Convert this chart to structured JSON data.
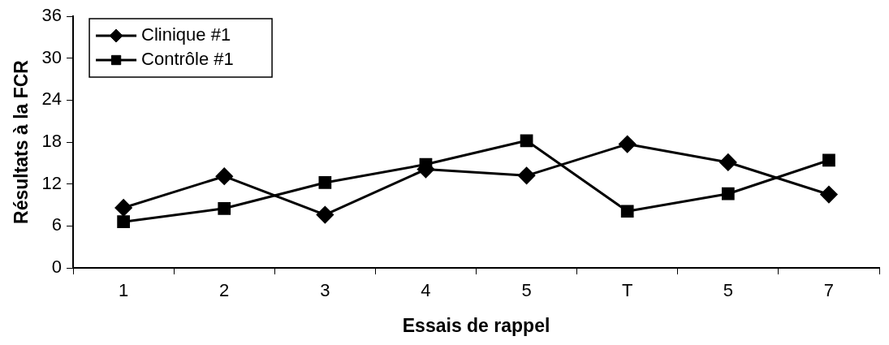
{
  "chart_data": {
    "type": "line",
    "xlabel": "Essais de rappel",
    "ylabel": "Résultats à la FCR",
    "categories": [
      "1",
      "2",
      "3",
      "4",
      "5",
      "T",
      "5",
      "7"
    ],
    "series": [
      {
        "name": "Clinique #1",
        "color": "#000000",
        "marker": "diamond",
        "values": [
          8.6,
          13.1,
          7.6,
          14.1,
          13.2,
          17.7,
          15.1,
          10.5
        ]
      },
      {
        "name": "Contrôle #1",
        "color": "#000000",
        "marker": "square",
        "values": [
          6.6,
          8.5,
          12.2,
          14.8,
          18.2,
          8.1,
          10.6,
          15.4
        ]
      }
    ],
    "ylim": [
      0,
      36
    ],
    "yticks": [
      0,
      6,
      12,
      18,
      24,
      30,
      36
    ],
    "grid": false,
    "legend": "top left",
    "line_style": "solid"
  }
}
